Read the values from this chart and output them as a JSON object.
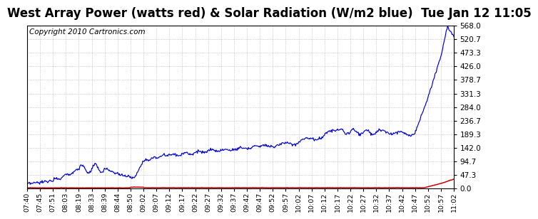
{
  "title": "West Array Power (watts red) & Solar Radiation (W/m2 blue)  Tue Jan 12 11:05",
  "copyright": "Copyright 2010 Cartronics.com",
  "ylim": [
    0.0,
    568.0
  ],
  "yticks": [
    0.0,
    47.3,
    94.7,
    142.0,
    189.3,
    236.7,
    284.0,
    331.3,
    378.7,
    426.0,
    473.3,
    520.7,
    568.0
  ],
  "xtick_labels": [
    "07:40",
    "07:45",
    "07:51",
    "08:03",
    "08:19",
    "08:33",
    "08:39",
    "08:44",
    "08:50",
    "09:02",
    "09:07",
    "09:12",
    "09:17",
    "09:22",
    "09:27",
    "09:32",
    "09:37",
    "09:42",
    "09:47",
    "09:52",
    "09:57",
    "10:02",
    "10:07",
    "10:12",
    "10:17",
    "10:22",
    "10:27",
    "10:32",
    "10:37",
    "10:42",
    "10:47",
    "10:52",
    "10:57",
    "11:02"
  ],
  "blue_line_color": "#0000CC",
  "red_line_color": "#CC0000",
  "grid_color": "#AAAAAA",
  "bg_color": "#FFFFFF",
  "title_fontsize": 12,
  "copyright_fontsize": 7.5
}
